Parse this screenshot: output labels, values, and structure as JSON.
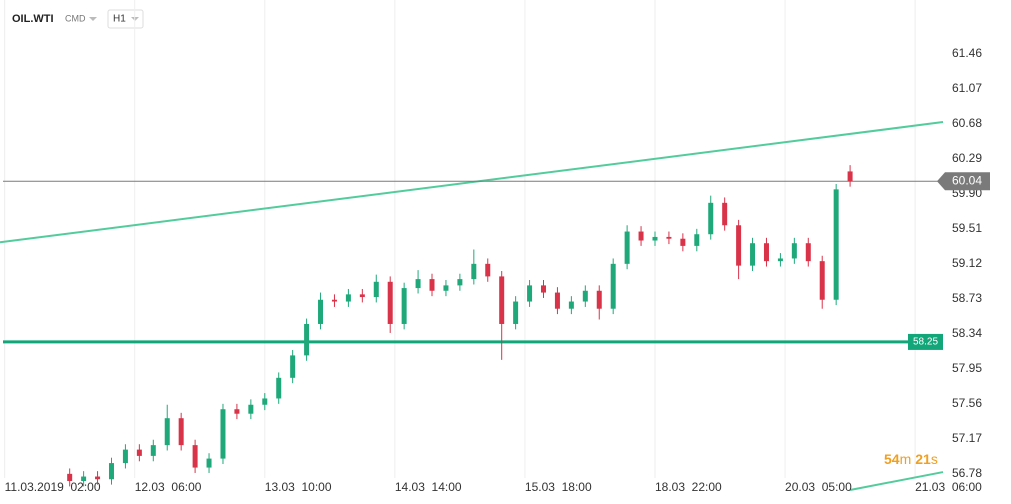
{
  "chart_data": {
    "type": "candlestick",
    "symbol": "OIL.WTI",
    "group": "CMD",
    "interval": "H1",
    "timer_parts": [
      "54",
      "m",
      "21",
      "s"
    ],
    "x": [
      14,
      17,
      20,
      23,
      26,
      29,
      32,
      35,
      38,
      41,
      44,
      47,
      50,
      53,
      56,
      59,
      62,
      65,
      68,
      71,
      74,
      77,
      80,
      83,
      86,
      89,
      92,
      95,
      98,
      101,
      104,
      107,
      110,
      113,
      116,
      119,
      122,
      125,
      128,
      131,
      134,
      137,
      140,
      143,
      146,
      149,
      152,
      155,
      158,
      161,
      164,
      167,
      170,
      173,
      176,
      179,
      182
    ],
    "open": [
      56.78,
      56.7,
      56.75,
      56.72,
      56.9,
      57.05,
      56.98,
      57.1,
      57.4,
      57.1,
      56.85,
      56.95,
      57.5,
      57.45,
      57.55,
      57.62,
      57.85,
      58.1,
      58.45,
      58.72,
      58.7,
      58.78,
      58.75,
      58.92,
      58.45,
      58.85,
      58.95,
      58.82,
      58.88,
      58.95,
      59.12,
      58.98,
      58.45,
      58.7,
      58.88,
      58.8,
      58.62,
      58.7,
      58.82,
      58.62,
      59.12,
      59.48,
      59.38,
      59.42,
      59.4,
      59.32,
      59.45,
      59.8,
      59.55,
      59.1,
      59.35,
      59.15,
      59.18,
      59.35,
      59.15,
      58.72,
      60.15
    ],
    "high": [
      56.84,
      56.81,
      56.81,
      56.96,
      57.11,
      57.11,
      57.16,
      57.55,
      57.46,
      57.16,
      57.01,
      57.56,
      57.56,
      57.61,
      57.68,
      57.91,
      58.16,
      58.51,
      58.8,
      58.78,
      58.84,
      58.84,
      59.0,
      58.98,
      58.91,
      59.05,
      59.01,
      58.94,
      59.01,
      59.28,
      59.18,
      59.04,
      58.76,
      58.94,
      58.94,
      58.86,
      58.76,
      58.88,
      58.88,
      59.18,
      59.55,
      59.54,
      59.48,
      59.48,
      59.46,
      59.51,
      59.88,
      59.86,
      59.61,
      59.41,
      59.41,
      59.24,
      59.41,
      59.41,
      59.21,
      60.01,
      60.22
    ],
    "low": [
      56.64,
      56.64,
      56.66,
      56.66,
      56.84,
      56.92,
      56.92,
      57.04,
      57.04,
      56.79,
      56.79,
      56.89,
      57.39,
      57.39,
      57.49,
      57.56,
      57.79,
      58.04,
      58.39,
      58.64,
      58.64,
      58.69,
      58.69,
      58.35,
      58.39,
      58.79,
      58.76,
      58.76,
      58.82,
      58.89,
      58.92,
      58.05,
      58.39,
      58.64,
      58.74,
      58.56,
      58.56,
      58.64,
      58.5,
      58.56,
      59.06,
      59.32,
      59.32,
      59.34,
      59.26,
      59.26,
      59.39,
      59.49,
      58.95,
      59.04,
      59.09,
      59.09,
      59.12,
      59.09,
      58.62,
      58.66,
      59.98
    ],
    "close": [
      56.7,
      56.75,
      56.72,
      56.9,
      57.05,
      56.98,
      57.1,
      57.4,
      57.1,
      56.85,
      56.95,
      57.5,
      57.45,
      57.55,
      57.62,
      57.85,
      58.1,
      58.45,
      58.72,
      58.7,
      58.78,
      58.75,
      58.92,
      58.45,
      58.85,
      58.95,
      58.82,
      58.88,
      58.95,
      59.12,
      58.98,
      58.45,
      58.7,
      58.88,
      58.8,
      58.62,
      58.7,
      58.82,
      58.62,
      59.12,
      59.48,
      59.38,
      59.42,
      59.4,
      59.32,
      59.45,
      59.8,
      59.55,
      59.1,
      59.35,
      59.15,
      59.18,
      59.35,
      59.15,
      58.72,
      59.95,
      60.04
    ],
    "up_color": "#1fa97a",
    "down_color": "#d9334a",
    "lines": [
      {
        "x": [
          -1,
          202
        ],
        "values": [
          59.36,
          60.7
        ],
        "color": "#52cc9c"
      },
      {
        "x": [
          182,
          202
        ],
        "values": [
          56.6,
          56.8
        ],
        "color": "#52cc9c"
      }
    ],
    "levels": [
      {
        "value": 58.25,
        "color": "#12a679"
      },
      {
        "value": 60.04,
        "color": "#7a7a7a"
      }
    ],
    "xlim": [
      -1,
      202
    ],
    "ylim": [
      56.6,
      62.06
    ],
    "xticks": [
      {
        "value": 0,
        "label": "11.03.2019  02:00"
      },
      {
        "value": 28,
        "label": "12.03  06:00"
      },
      {
        "value": 56,
        "label": "13.03  10:00"
      },
      {
        "value": 84,
        "label": "14.03  14:00"
      },
      {
        "value": 112,
        "label": "15.03  18:00"
      },
      {
        "value": 140,
        "label": "18.03  22:00"
      },
      {
        "value": 168,
        "label": "20.03  05:00"
      },
      {
        "value": 196,
        "label": "21.03  06:00"
      }
    ],
    "yticks": [
      61.46,
      61.07,
      60.68,
      60.29,
      {
        "value": 59.9,
        "label": "59.90"
      },
      59.51,
      59.12,
      58.73,
      58.34,
      57.95,
      57.56,
      57.17,
      56.78
    ],
    "xgrid": true
  }
}
